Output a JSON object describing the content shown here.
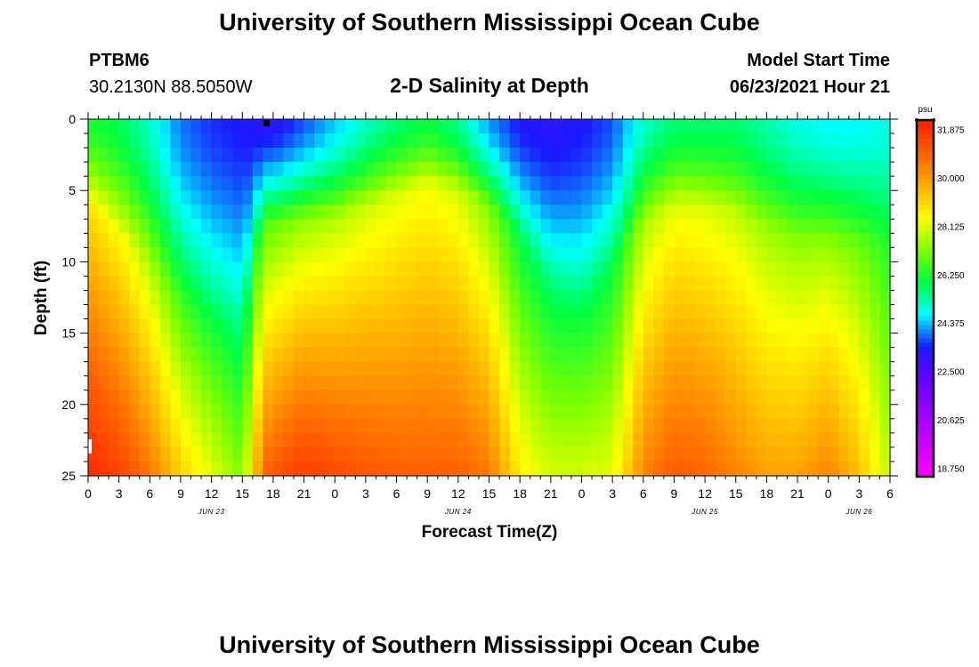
{
  "header": {
    "title_top": "University of Southern Mississippi Ocean Cube",
    "title_bottom": "University of Southern Mississippi Ocean Cube",
    "station": "PTBM6",
    "coords": "30.2130N  88.5050W",
    "plot_title": "2-D Salinity at Depth",
    "model_label": "Model Start Time",
    "model_time": "06/23/2021 Hour 21"
  },
  "colors": {
    "scale": [
      "#ff00ff",
      "#cc00ff",
      "#9900ff",
      "#6600ff",
      "#1a1aff",
      "#00ffff",
      "#00ff40",
      "#7fff00",
      "#ffff00",
      "#ffb000",
      "#ff6000",
      "#ff2000"
    ]
  },
  "chart_data": {
    "type": "heatmap",
    "title": "2-D Salinity at Depth",
    "xlabel": "Forecast Time(Z)",
    "ylabel": "Depth (ft)",
    "units": "psu",
    "x_range_hours": [
      0,
      78
    ],
    "ylim": [
      0,
      25
    ],
    "y_ticks": [
      "0",
      "5",
      "10",
      "15",
      "20",
      "25"
    ],
    "x_ticks": [
      "0",
      "3",
      "6",
      "9",
      "12",
      "15",
      "18",
      "21",
      "0",
      "3",
      "6",
      "9",
      "12",
      "15",
      "18",
      "21",
      "0",
      "3",
      "6",
      "9",
      "12",
      "15",
      "18",
      "21",
      "0",
      "3",
      "6"
    ],
    "date_labels": [
      {
        "label": "JUN 23",
        "hour": 12
      },
      {
        "label": "JUN 24",
        "hour": 36
      },
      {
        "label": "JUN 25",
        "hour": 60
      },
      {
        "label": "JUN 26",
        "hour": 75
      }
    ],
    "colorbar": {
      "label": "psu",
      "ticks": [
        "31.875",
        "30.000",
        "28.125",
        "26.250",
        "24.375",
        "22.500",
        "20.625",
        "18.750"
      ],
      "min": 18.0,
      "max": 32.5
    },
    "salinity_profile": {
      "hours": [
        0,
        3,
        6,
        9,
        12,
        15,
        17,
        18,
        21,
        24,
        27,
        30,
        33,
        36,
        39,
        42,
        45,
        48,
        51,
        54,
        57,
        60,
        63,
        66,
        69,
        72,
        75,
        78
      ],
      "surface": [
        26.2,
        25.8,
        25.0,
        23.8,
        23.4,
        23.2,
        23.0,
        23.0,
        23.6,
        24.3,
        25.0,
        25.6,
        26.0,
        25.4,
        24.0,
        23.2,
        23.0,
        23.2,
        23.6,
        25.0,
        25.6,
        25.6,
        25.6,
        25.2,
        24.8,
        24.6,
        24.6,
        24.8
      ],
      "bottom": [
        32.3,
        31.8,
        30.8,
        29.3,
        28.3,
        27.2,
        31.0,
        31.4,
        31.9,
        31.6,
        31.4,
        31.2,
        31.2,
        31.2,
        30.8,
        28.8,
        28.1,
        28.1,
        28.3,
        30.6,
        31.3,
        31.1,
        30.6,
        30.1,
        30.1,
        30.6,
        29.6,
        27.8
      ],
      "halocline_depth_ft": [
        6.0,
        8.0,
        10.0,
        12.0,
        13.0,
        13.0,
        7.0,
        7.2,
        7.0,
        6.8,
        6.0,
        5.2,
        4.5,
        5.0,
        6.0,
        8.0,
        11.0,
        12.0,
        10.0,
        7.0,
        6.0,
        6.0,
        6.5,
        7.5,
        8.2,
        8.5,
        8.5,
        8.5
      ]
    }
  }
}
